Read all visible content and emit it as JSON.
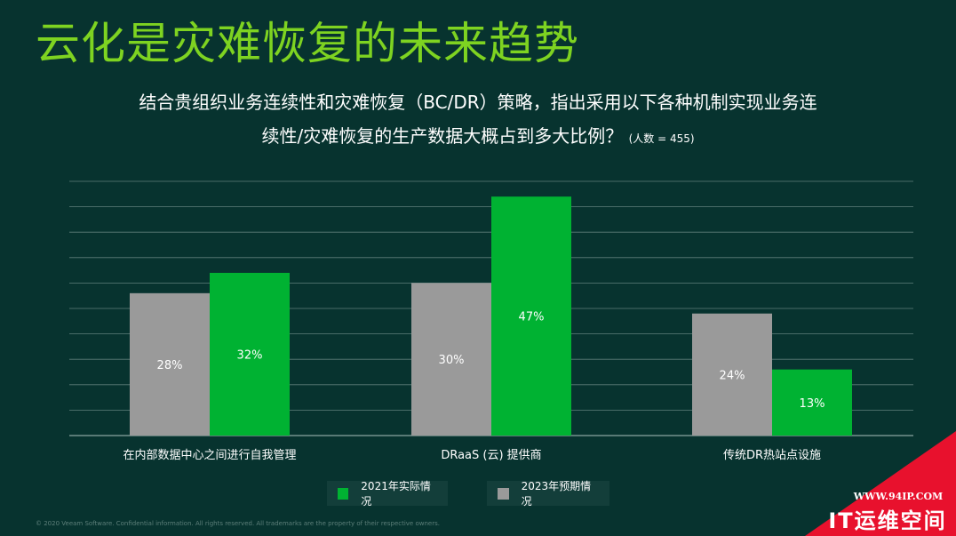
{
  "title": "云化是灾难恢复的未来趋势",
  "subtitle_line1": "结合贵组织业务连续性和灾难恢复（BC/DR）策略，指出采用以下各种机制实现业务连",
  "subtitle_line2": "续性/灾难恢复的生产数据大概占到多大比例？",
  "sample_note": "(人数 = 455)",
  "legend": [
    {
      "label": "2021年实际情况",
      "color": "#00b232"
    },
    {
      "label": "2023年预期情况",
      "color": "#9a9a9a"
    }
  ],
  "copyright": "© 2020 Veeam Software. Confidential information. All rights reserved. All trademarks are the property of their respective owners.",
  "watermark": {
    "url": "WWW.94IP.COM",
    "brand": "IT运维空间"
  },
  "colors": {
    "background": "#07332f",
    "title": "#7ed321",
    "green": "#00b232",
    "gray": "#9a9a9a",
    "grid": "#5f7f7b",
    "accent_red": "#e8112d"
  },
  "chart_data": {
    "type": "bar",
    "categories": [
      "在内部数据中心之间进行自我管理",
      "DRaaS (云) 提供商",
      "传统DR热站点设施"
    ],
    "series": [
      {
        "name": "2023年预期情况",
        "color": "#9a9a9a",
        "values": [
          28,
          30,
          24
        ],
        "labels": [
          "28%",
          "30%",
          "24%"
        ]
      },
      {
        "name": "2021年实际情况",
        "color": "#00b232",
        "values": [
          32,
          47,
          13
        ],
        "labels": [
          "32%",
          "47%",
          "13%"
        ]
      }
    ],
    "ylim": [
      0,
      50
    ],
    "grid": true,
    "legend_position": "bottom"
  }
}
